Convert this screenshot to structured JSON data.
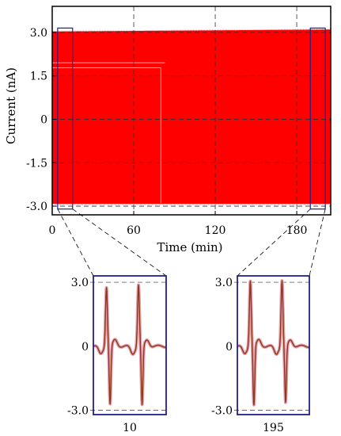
{
  "chart_data": [
    {
      "type": "line",
      "title": "",
      "xlabel": "Time (min)",
      "ylabel": "Current (nA)",
      "xlim": [
        0,
        205
      ],
      "ylim": [
        -3.3,
        3.9
      ],
      "xticks": [
        0,
        60,
        120,
        180
      ],
      "yticks": [
        3.0,
        1.5,
        0,
        -1.5,
        -3.0
      ],
      "xtick_labels": [
        "0",
        "60",
        "120",
        "180"
      ],
      "ytick_labels": [
        "3.0",
        "1.5",
        "0",
        "-1.5",
        "-3.0"
      ],
      "grid": true,
      "series": [
        {
          "x": [
            0,
            205
          ],
          "upper": [
            3.05,
            3.12
          ],
          "lower": [
            -2.95,
            -2.95
          ],
          "color": "#ff0000"
        }
      ],
      "zoom_windows": [
        {
          "x_start": 4,
          "x_end": 15
        },
        {
          "x_start": 190,
          "x_end": 201
        }
      ]
    },
    {
      "type": "line",
      "xtick_label": "10",
      "yticks": [
        3.0,
        0,
        -3.0
      ],
      "ytick_labels": [
        "3.0",
        "0",
        "-3.0"
      ],
      "ylim": [
        -3.2,
        3.3
      ],
      "series": [
        {
          "name": "",
          "peaks": [
            2.8,
            2.9
          ],
          "troughs": [
            -2.75,
            -2.8
          ],
          "color": "#8b3a1a"
        }
      ]
    },
    {
      "type": "line",
      "xtick_label": "195",
      "yticks": [
        3.0,
        0,
        -3.0
      ],
      "ytick_labels": [
        "3.0",
        "0",
        "-3.0"
      ],
      "ylim": [
        -3.2,
        3.3
      ],
      "series": [
        {
          "name": "",
          "peaks": [
            3.1,
            3.1
          ],
          "troughs": [
            -2.8,
            -2.7
          ],
          "color": "#8b3a1a"
        }
      ]
    }
  ],
  "colors": {
    "signal": "#ff0000",
    "signal_overlay": "#f2b6c8",
    "zoom_box": "#1f1f8f",
    "trace": "#8b3a1a",
    "trace_glow": "#e6a0b0",
    "grid": "#333333"
  }
}
